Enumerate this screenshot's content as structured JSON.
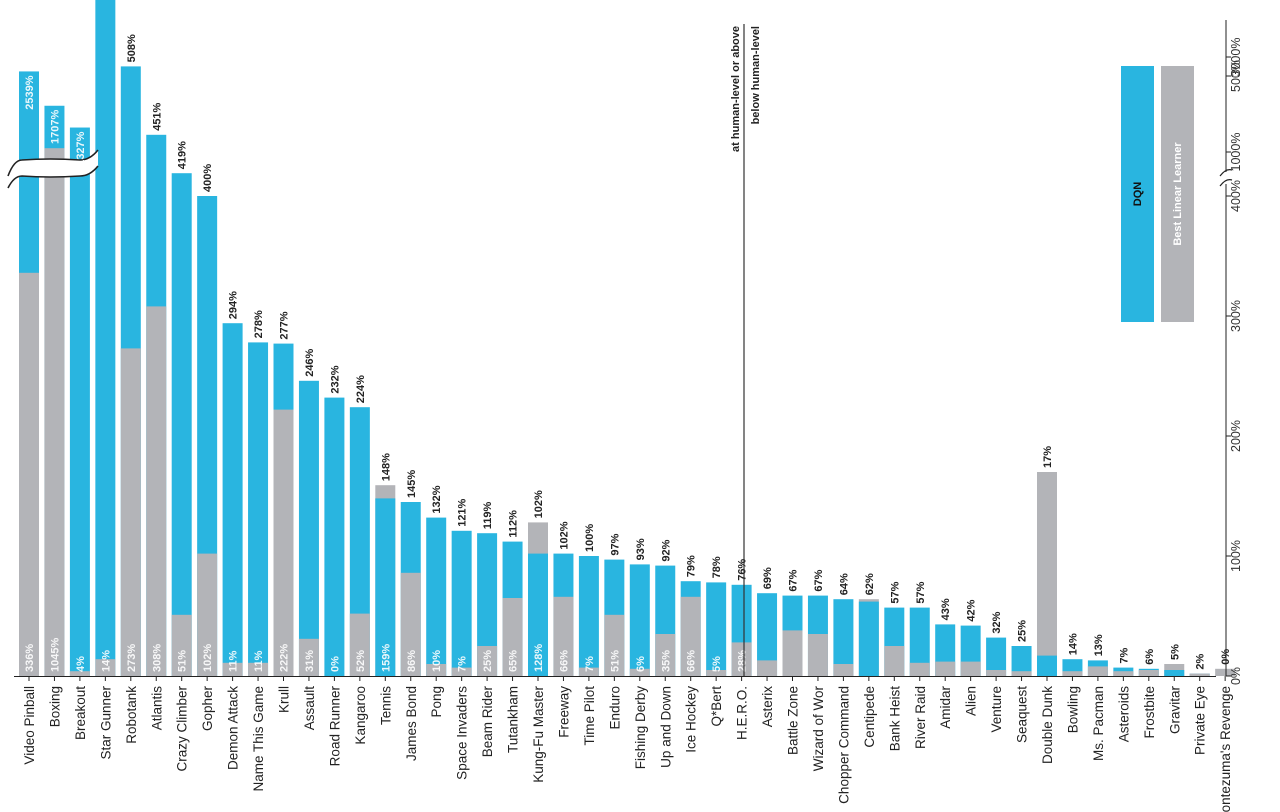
{
  "chart_data": {
    "type": "bar",
    "orientation": "rotated-vertical",
    "y_unit": "% of human-level score",
    "series": [
      {
        "name": "DQN",
        "color": "#29b5e0"
      },
      {
        "name": "Best Linear Learner",
        "color": "#b3b4b8"
      }
    ],
    "y_ticks": [
      {
        "label": "0%",
        "value": 0
      },
      {
        "label": "100%",
        "value": 100
      },
      {
        "label": "200%",
        "value": 200
      },
      {
        "label": "300%",
        "value": 300
      },
      {
        "label": "400%",
        "value": 400
      },
      {
        "label": "500%",
        "value": 500
      },
      {
        "label": "600%",
        "value": 600
      },
      {
        "label": "1000%",
        "value": 1000
      },
      {
        "label": "3000%",
        "value": 3000
      }
    ],
    "axis_break": {
      "between": [
        600,
        1000
      ]
    },
    "games": [
      {
        "name": "Video Pinball",
        "dqn": 2539,
        "dqn_label": "2539%",
        "linear": 336,
        "linear_label": "336%"
      },
      {
        "name": "Boxing",
        "dqn": 1707,
        "dqn_label": "1707%",
        "linear": 1045,
        "linear_label": "1045%"
      },
      {
        "name": "Breakout",
        "dqn": 1327,
        "dqn_label": "1327%",
        "linear": 4,
        "linear_label": "4%"
      },
      {
        "name": "Star Gunner",
        "dqn": 598,
        "dqn_label": "598%",
        "linear": 14,
        "linear_label": "14%"
      },
      {
        "name": "Robotank",
        "dqn": 508,
        "dqn_label": "508%",
        "linear": 273,
        "linear_label": "273%"
      },
      {
        "name": "Atlantis",
        "dqn": 451,
        "dqn_label": "451%",
        "linear": 308,
        "linear_label": "308%"
      },
      {
        "name": "Crazy Climber",
        "dqn": 419,
        "dqn_label": "419%",
        "linear": 51,
        "linear_label": "51%"
      },
      {
        "name": "Gopher",
        "dqn": 400,
        "dqn_label": "400%",
        "linear": 102,
        "linear_label": "102%"
      },
      {
        "name": "Demon Attack",
        "dqn": 294,
        "dqn_label": "294%",
        "linear": 11,
        "linear_label": "11%"
      },
      {
        "name": "Name This Game",
        "dqn": 278,
        "dqn_label": "278%",
        "linear": 11,
        "linear_label": "11%"
      },
      {
        "name": "Krull",
        "dqn": 277,
        "dqn_label": "277%",
        "linear": 222,
        "linear_label": "222%"
      },
      {
        "name": "Assault",
        "dqn": 246,
        "dqn_label": "246%",
        "linear": 31,
        "linear_label": "31%"
      },
      {
        "name": "Road Runner",
        "dqn": 232,
        "dqn_label": "232%",
        "linear": 0,
        "linear_label": "0%"
      },
      {
        "name": "Kangaroo",
        "dqn": 224,
        "dqn_label": "224%",
        "linear": 52,
        "linear_label": "52%"
      },
      {
        "name": "Tennis",
        "dqn": 148,
        "dqn_label": "148%",
        "linear": 159,
        "linear_label": "159%"
      },
      {
        "name": "James Bond",
        "dqn": 145,
        "dqn_label": "145%",
        "linear": 86,
        "linear_label": "86%"
      },
      {
        "name": "Pong",
        "dqn": 132,
        "dqn_label": "132%",
        "linear": 10,
        "linear_label": "10%"
      },
      {
        "name": "Space Invaders",
        "dqn": 121,
        "dqn_label": "121%",
        "linear": 7,
        "linear_label": "7%"
      },
      {
        "name": "Beam Rider",
        "dqn": 119,
        "dqn_label": "119%",
        "linear": 25,
        "linear_label": "25%"
      },
      {
        "name": "Tutankham",
        "dqn": 112,
        "dqn_label": "112%",
        "linear": 65,
        "linear_label": "65%"
      },
      {
        "name": "Kung-Fu Master",
        "dqn": 102,
        "dqn_label": "102%",
        "linear": 128,
        "linear_label": "128%"
      },
      {
        "name": "Freeway",
        "dqn": 102,
        "dqn_label": "102%",
        "linear": 66,
        "linear_label": "66%"
      },
      {
        "name": "Time Pilot",
        "dqn": 100,
        "dqn_label": "100%",
        "linear": 7,
        "linear_label": "7%"
      },
      {
        "name": "Enduro",
        "dqn": 97,
        "dqn_label": "97%",
        "linear": 51,
        "linear_label": "51%"
      },
      {
        "name": "Fishing Derby",
        "dqn": 93,
        "dqn_label": "93%",
        "linear": 6,
        "linear_label": "6%"
      },
      {
        "name": "Up and Down",
        "dqn": 92,
        "dqn_label": "92%",
        "linear": 35,
        "linear_label": "35%"
      },
      {
        "name": "Ice Hockey",
        "dqn": 79,
        "dqn_label": "79%",
        "linear": 66,
        "linear_label": "66%"
      },
      {
        "name": "Q*Bert",
        "dqn": 78,
        "dqn_label": "78%",
        "linear": 5,
        "linear_label": "5%"
      },
      {
        "name": "H.E.R.O.",
        "dqn": 76,
        "dqn_label": "76%",
        "linear": 28,
        "linear_label": "28%"
      },
      {
        "name": "Asterix",
        "dqn": 69,
        "dqn_label": "69%",
        "linear": 13,
        "linear_label": ""
      },
      {
        "name": "Battle Zone",
        "dqn": 67,
        "dqn_label": "67%",
        "linear": 38,
        "linear_label": ""
      },
      {
        "name": "Wizard of Wor",
        "dqn": 67,
        "dqn_label": "67%",
        "linear": 35,
        "linear_label": ""
      },
      {
        "name": "Chopper Command",
        "dqn": 64,
        "dqn_label": "64%",
        "linear": 10,
        "linear_label": ""
      },
      {
        "name": "Centipede",
        "dqn": 62,
        "dqn_label": "62%",
        "linear": 64,
        "linear_label": ""
      },
      {
        "name": "Bank Heist",
        "dqn": 57,
        "dqn_label": "57%",
        "linear": 25,
        "linear_label": ""
      },
      {
        "name": "River Raid",
        "dqn": 57,
        "dqn_label": "57%",
        "linear": 11,
        "linear_label": ""
      },
      {
        "name": "Amidar",
        "dqn": 43,
        "dqn_label": "43%",
        "linear": 12,
        "linear_label": ""
      },
      {
        "name": "Alien",
        "dqn": 42,
        "dqn_label": "42%",
        "linear": 12,
        "linear_label": ""
      },
      {
        "name": "Venture",
        "dqn": 32,
        "dqn_label": "32%",
        "linear": 5,
        "linear_label": ""
      },
      {
        "name": "Seaquest",
        "dqn": 25,
        "dqn_label": "25%",
        "linear": 4,
        "linear_label": ""
      },
      {
        "name": "Double Dunk",
        "dqn": 17,
        "dqn_label": "17%",
        "linear": 170,
        "linear_label": ""
      },
      {
        "name": "Bowling",
        "dqn": 14,
        "dqn_label": "14%",
        "linear": 4,
        "linear_label": ""
      },
      {
        "name": "Ms. Pacman",
        "dqn": 13,
        "dqn_label": "13%",
        "linear": 8,
        "linear_label": ""
      },
      {
        "name": "Asteroids",
        "dqn": 7,
        "dqn_label": "7%",
        "linear": 4,
        "linear_label": ""
      },
      {
        "name": "Frostbite",
        "dqn": 6,
        "dqn_label": "6%",
        "linear": 5,
        "linear_label": ""
      },
      {
        "name": "Gravitar",
        "dqn": 5,
        "dqn_label": "5%",
        "linear": 10,
        "linear_label": ""
      },
      {
        "name": "Private Eye",
        "dqn": 2,
        "dqn_label": "2%",
        "linear": 2,
        "linear_label": ""
      },
      {
        "name": "Montezuma's Revenge",
        "dqn": 0,
        "dqn_label": "0%",
        "linear": 6,
        "linear_label": ""
      }
    ],
    "annotations": {
      "above": "at human-level or above",
      "below": "below human-level"
    },
    "legend": {
      "position": "top-right",
      "dqn": "DQN",
      "linear": "Best Linear Learner"
    }
  }
}
